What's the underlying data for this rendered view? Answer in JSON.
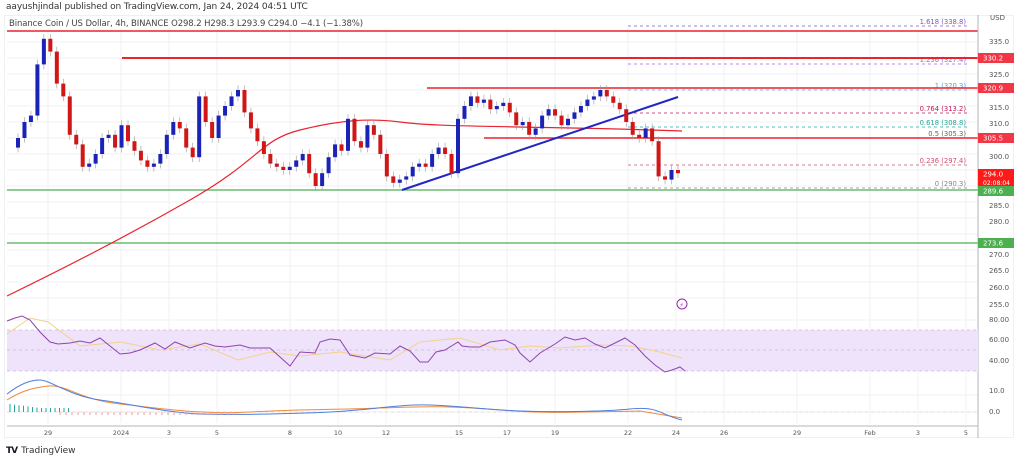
{
  "publisher_line": "aayushjindal published on TradingView.com, Jan 24, 2024 04:51 UTC",
  "symbol_header": "Binance Coin / US Dollar, 4h, BINANCE  O298.2  H298.3  L293.9  C294.0  −4.1 (−1.38%)",
  "footer": {
    "logo_icon": "tradingview-logo-icon",
    "logo_text": "TradingView"
  },
  "price_axis": {
    "currency": "USD",
    "ticks": [
      "335.0",
      "325.0",
      "315.0",
      "310.0",
      "300.0",
      "285.0",
      "280.0",
      "270.0",
      "265.0",
      "260.0",
      "255.0"
    ],
    "badges": [
      {
        "label": "330.2",
        "color": "#f23645"
      },
      {
        "label": "320.9",
        "color": "#f23645"
      },
      {
        "label": "305.5",
        "color": "#f23645"
      },
      {
        "label": "294.0",
        "sub": "02:08:04",
        "color": "#ff1a1a"
      },
      {
        "label": "289.6",
        "color": "#4caf50"
      },
      {
        "label": "273.6",
        "color": "#4caf50"
      }
    ]
  },
  "rsi_axis": {
    "ticks": [
      "80.00",
      "60.00",
      "40.00"
    ]
  },
  "macd_axis": {
    "ticks": [
      "10.0",
      "0.0"
    ]
  },
  "time_axis": {
    "ticks": [
      "29",
      "2024",
      "3",
      "5",
      "8",
      "10",
      "12",
      "15",
      "17",
      "19",
      "22",
      "24",
      "26",
      "29",
      "Feb",
      "3",
      "5"
    ]
  },
  "fib_levels": [
    {
      "label": "1.618 (338.8)",
      "color": "#7e57c2"
    },
    {
      "label": "1.236 (327.4)",
      "color": "#9c6ade"
    },
    {
      "label": "1 (320.3)",
      "color": "#5a9fd6"
    },
    {
      "label": "0.764 (313.2)",
      "color": "#c2185b"
    },
    {
      "label": "0.618 (308.8)",
      "color": "#26a69a"
    },
    {
      "label": "0.5 (305.3)",
      "color": "#666666"
    },
    {
      "label": "0.236 (297.4)",
      "color": "#d0506a"
    },
    {
      "label": "0 (290.3)",
      "color": "#888888"
    }
  ],
  "colors": {
    "bull_candle": "#1a22b8",
    "bear_candle": "#d01616",
    "resistance": "#e8242f",
    "support": "#4caf50",
    "trendline": "#2127c2",
    "sma": "#e8242f",
    "rsi_line": "#8e44ad",
    "rsi_ma": "#f3d28a",
    "rsi_band": "#efe2fb",
    "macd": "#4f7fe0",
    "signal": "#f08a3c"
  },
  "chart_data": {
    "type": "candlestick",
    "title": "Binance Coin / US Dollar, 4h, BINANCE",
    "ohlc_last": {
      "open": 298.2,
      "high": 298.3,
      "low": 293.9,
      "close": 294.0,
      "change": -4.1,
      "change_pct": -1.38
    },
    "ylim": [
      252,
      340
    ],
    "x_ticks": [
      "29",
      "2024",
      "3",
      "5",
      "8",
      "10",
      "12",
      "15",
      "17",
      "19",
      "22",
      "24",
      "26",
      "29",
      "Feb",
      "3",
      "5"
    ],
    "approx_close_path": [
      {
        "date": "Dec 28",
        "price": 305
      },
      {
        "date": "Dec 29",
        "price": 336
      },
      {
        "date": "Dec 31",
        "price": 315
      },
      {
        "date": "Jan 2",
        "price": 316
      },
      {
        "date": "Jan 4",
        "price": 318
      },
      {
        "date": "Jan 6",
        "price": 307
      },
      {
        "date": "Jan 8",
        "price": 294
      },
      {
        "date": "Jan 10",
        "price": 314
      },
      {
        "date": "Jan 11",
        "price": 295
      },
      {
        "date": "Jan 14",
        "price": 302
      },
      {
        "date": "Jan 15",
        "price": 318
      },
      {
        "date": "Jan 18",
        "price": 309
      },
      {
        "date": "Jan 21",
        "price": 319
      },
      {
        "date": "Jan 22",
        "price": 305
      },
      {
        "date": "Jan 23",
        "price": 292
      },
      {
        "date": "Jan 24",
        "price": 294
      }
    ],
    "horizontal_levels": [
      {
        "name": "resistance",
        "value": 338.0,
        "color": "#e8242f"
      },
      {
        "name": "resistance",
        "value": 330.2,
        "color": "#e8242f"
      },
      {
        "name": "resistance",
        "value": 320.9,
        "color": "#e8242f"
      },
      {
        "name": "resistance",
        "value": 305.5,
        "color": "#e8242f"
      },
      {
        "name": "support",
        "value": 289.6,
        "color": "#4caf50"
      },
      {
        "name": "support",
        "value": 273.6,
        "color": "#4caf50"
      }
    ],
    "fibonacci": [
      {
        "ratio": 1.618,
        "price": 338.8
      },
      {
        "ratio": 1.236,
        "price": 327.4
      },
      {
        "ratio": 1,
        "price": 320.3
      },
      {
        "ratio": 0.764,
        "price": 313.2
      },
      {
        "ratio": 0.618,
        "price": 308.8
      },
      {
        "ratio": 0.5,
        "price": 305.3
      },
      {
        "ratio": 0.236,
        "price": 297.4
      },
      {
        "ratio": 0,
        "price": 290.3
      }
    ],
    "trendline": {
      "from": {
        "date": "Jan 12",
        "price": 290
      },
      "to": {
        "date": "Jan 22",
        "price": 318
      },
      "color": "#2127c2"
    },
    "moving_average": {
      "type": "SMA 100",
      "color": "#e8242f",
      "start": 258,
      "end": 309
    },
    "indicators": [
      {
        "name": "RSI",
        "levels": [
          70,
          50,
          30
        ],
        "ticks": [
          "80.00",
          "60.00",
          "40.00"
        ],
        "last_value": 38
      },
      {
        "name": "MACD",
        "ticks": [
          "10.0",
          "0.0"
        ]
      }
    ],
    "countdown": "02:08:04"
  }
}
